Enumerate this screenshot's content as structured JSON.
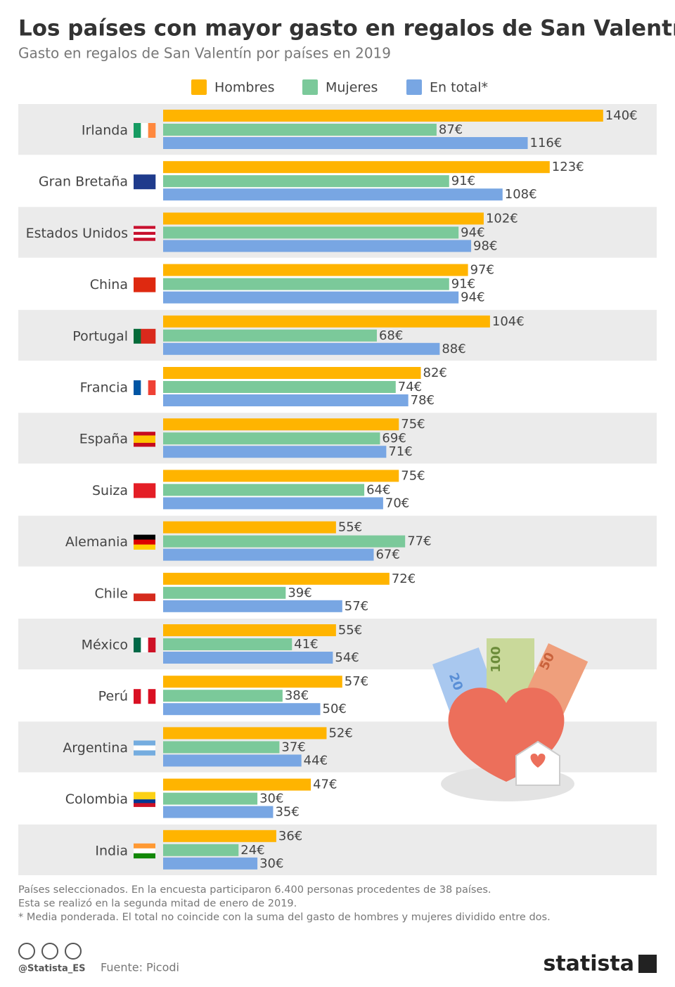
{
  "chart_data": {
    "type": "bar",
    "orientation": "horizontal",
    "title": "Los países con mayor gasto en regalos de San Valentín",
    "subtitle": "Gasto en regalos de San Valentín por países en 2019",
    "categories": [
      "Irlanda",
      "Gran Bretaña",
      "Estados Unidos",
      "China",
      "Portugal",
      "Francia",
      "España",
      "Suiza",
      "Alemania",
      "Chile",
      "México",
      "Perú",
      "Argentina",
      "Colombia",
      "India"
    ],
    "series": [
      {
        "name": "Hombres",
        "color": "#ffb400",
        "values": [
          140,
          123,
          102,
          97,
          104,
          82,
          75,
          75,
          55,
          72,
          55,
          57,
          52,
          47,
          36
        ],
        "value_labels": [
          "140€",
          "123€",
          "102€",
          "97€",
          "104€",
          "82€",
          "75€",
          "75€",
          "55€",
          "72€",
          "55€",
          "57€",
          "52€",
          "47€",
          "36€"
        ]
      },
      {
        "name": "Mujeres",
        "color": "#7bc99a",
        "values": [
          87,
          91,
          94,
          91,
          68,
          74,
          69,
          64,
          77,
          39,
          41,
          38,
          37,
          30,
          24
        ],
        "value_labels": [
          "87€",
          "91€",
          "94€",
          "91€",
          "68€",
          "74€",
          "69€",
          "64€",
          "77€",
          "39€",
          "41€",
          "38€",
          "37€",
          "30€",
          "24€"
        ]
      },
      {
        "name": "En total*",
        "color": "#78a6e3",
        "values": [
          116,
          108,
          98,
          94,
          88,
          78,
          71,
          70,
          67,
          57,
          54,
          50,
          44,
          35,
          30
        ],
        "value_labels": [
          "116€",
          "108€",
          "98€",
          "94€",
          "88€",
          "78€",
          "71€",
          "70€",
          "67€",
          "57€",
          "54€",
          "50€",
          "44€",
          "35€",
          "30€"
        ]
      }
    ],
    "notes": [
      "Países seleccionados. En la encuesta participaron 6.400 personas procedentes de 38 países.",
      "Esta se realizó en la segunda mitad de enero de 2019.",
      "* Media ponderada. El total no coincide con la suma del gasto de hombres y mujeres dividido entre dos."
    ],
    "source": "Fuente: Picodi",
    "credit": "@Statista_ES",
    "brand": "statista",
    "illustration": {
      "notes": [
        "20",
        "100",
        "50"
      ]
    }
  }
}
